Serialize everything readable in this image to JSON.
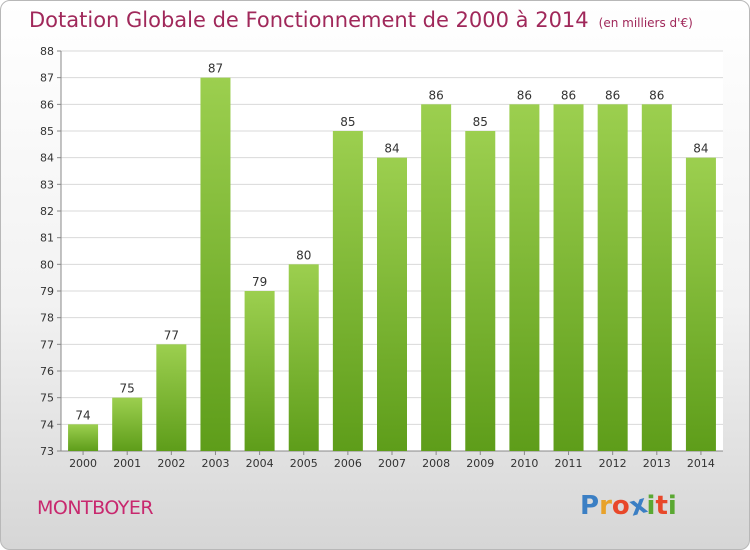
{
  "header": {
    "title": "Dotation Globale de Fonctionnement de 2000 à 2014",
    "unit": "(en milliers d'€)"
  },
  "footer": {
    "commune": "MONTBOYER",
    "logo_letters": [
      "P",
      "r",
      "o",
      "x",
      "i",
      "t",
      "i"
    ],
    "logo_colors": [
      "#3b7fc4",
      "#e8a22a",
      "#e8482a",
      "#3b7fc4",
      "#5aa832",
      "#e8482a",
      "#5aa832"
    ]
  },
  "colors": {
    "title": "#a0285a",
    "commune": "#c8286e",
    "bar_top": "#9ccf4f",
    "bar_bottom": "#5e9d1a"
  },
  "chart_data": {
    "type": "bar",
    "title": "Dotation Globale de Fonctionnement de 2000 à 2014",
    "subtitle": "(en milliers d'€)",
    "xlabel": "",
    "ylabel": "",
    "ylim": [
      73,
      88
    ],
    "yticks": [
      73,
      74,
      75,
      76,
      77,
      78,
      79,
      80,
      81,
      82,
      83,
      84,
      85,
      86,
      87,
      88
    ],
    "grid": true,
    "categories": [
      "2000",
      "2001",
      "2002",
      "2003",
      "2004",
      "2005",
      "2006",
      "2007",
      "2008",
      "2009",
      "2010",
      "2011",
      "2012",
      "2013",
      "2014"
    ],
    "values": [
      74,
      75,
      77,
      87,
      79,
      80,
      85,
      84,
      86,
      85,
      86,
      86,
      86,
      86,
      84
    ]
  }
}
